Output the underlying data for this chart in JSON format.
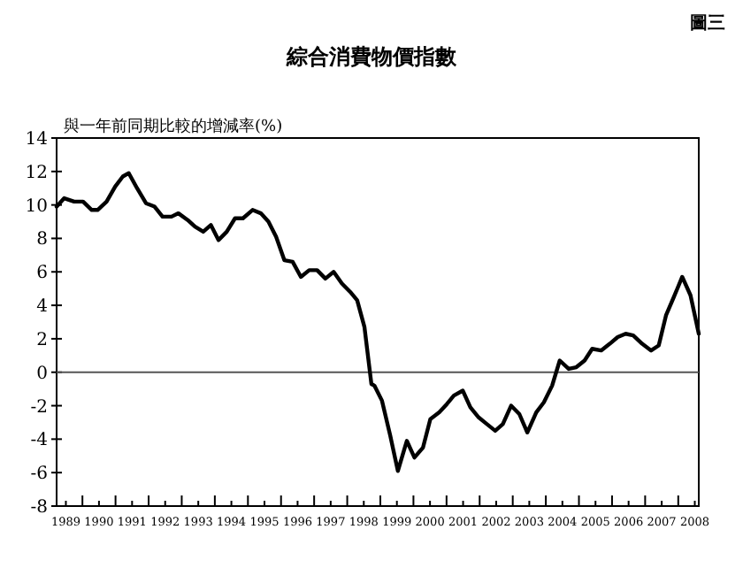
{
  "chart_data": {
    "type": "line",
    "title": "綜合消費物價指數",
    "ylabel": "與一年前同期比較的增減率(%)",
    "annotations": [
      "圖三"
    ],
    "x": [
      1989.22,
      1989.45,
      1989.75,
      1990.02,
      1990.28,
      1990.46,
      1990.73,
      1990.99,
      1991.22,
      1991.4,
      1991.65,
      1991.92,
      1992.18,
      1992.42,
      1992.69,
      1992.9,
      1993.18,
      1993.4,
      1993.65,
      1993.88,
      1994.11,
      1994.36,
      1994.61,
      1994.85,
      1995.14,
      1995.39,
      1995.62,
      1995.85,
      1996.1,
      1996.35,
      1996.6,
      1996.85,
      1997.09,
      1997.34,
      1997.59,
      1997.84,
      1998.09,
      1998.3,
      1998.52,
      1998.73,
      1998.82,
      1999.05,
      1999.3,
      1999.53,
      1999.8,
      2000.03,
      2000.29,
      2000.51,
      2000.78,
      2001.01,
      2001.22,
      2001.49,
      2001.72,
      2001.97,
      2002.22,
      2002.47,
      2002.7,
      2002.95,
      2003.2,
      2003.44,
      2003.71,
      2003.94,
      2004.19,
      2004.42,
      2004.69,
      2004.92,
      2005.17,
      2005.4,
      2005.67,
      2005.93,
      2006.17,
      2006.41,
      2006.64,
      2006.91,
      2007.18,
      2007.41,
      2007.63,
      2007.89,
      2008.12,
      2008.37,
      2008.62
    ],
    "series": [
      {
        "color": "#000000",
        "values": [
          9.9,
          10.4,
          10.2,
          10.2,
          9.7,
          9.7,
          10.2,
          11.1,
          11.7,
          11.9,
          11.0,
          10.1,
          9.9,
          9.3,
          9.3,
          9.5,
          9.1,
          8.7,
          8.4,
          8.8,
          7.9,
          8.4,
          9.2,
          9.2,
          9.7,
          9.5,
          9.0,
          8.1,
          6.7,
          6.6,
          5.7,
          6.1,
          6.1,
          5.6,
          6.0,
          5.3,
          4.8,
          4.3,
          2.7,
          -0.7,
          -0.8,
          -1.7,
          -3.8,
          -5.9,
          -4.1,
          -5.1,
          -4.5,
          -2.8,
          -2.4,
          -1.9,
          -1.4,
          -1.1,
          -2.1,
          -2.7,
          -3.1,
          -3.5,
          -3.1,
          -2.0,
          -2.5,
          -3.6,
          -2.4,
          -1.8,
          -0.8,
          0.7,
          0.2,
          0.3,
          0.7,
          1.4,
          1.3,
          1.7,
          2.1,
          2.3,
          2.2,
          1.7,
          1.3,
          1.6,
          3.4,
          4.6,
          5.7,
          4.6,
          2.3
        ]
      }
    ],
    "xlim": [
      1989.22,
      2008.62
    ],
    "xticks": [
      {
        "value": 1989.5,
        "label": "1989"
      },
      {
        "value": 1990,
        "label": null
      },
      {
        "value": 1990.5,
        "label": "1990"
      },
      {
        "value": 1991,
        "label": null
      },
      {
        "value": 1991.5,
        "label": "1991"
      },
      {
        "value": 1992,
        "label": null
      },
      {
        "value": 1992.5,
        "label": "1992"
      },
      {
        "value": 1993,
        "label": null
      },
      {
        "value": 1993.5,
        "label": "1993"
      },
      {
        "value": 1994,
        "label": null
      },
      {
        "value": 1994.5,
        "label": "1994"
      },
      {
        "value": 1995,
        "label": null
      },
      {
        "value": 1995.5,
        "label": "1995"
      },
      {
        "value": 1996,
        "label": null
      },
      {
        "value": 1996.5,
        "label": "1996"
      },
      {
        "value": 1997,
        "label": null
      },
      {
        "value": 1997.5,
        "label": "1997"
      },
      {
        "value": 1998,
        "label": null
      },
      {
        "value": 1998.5,
        "label": "1998"
      },
      {
        "value": 1999,
        "label": null
      },
      {
        "value": 1999.5,
        "label": "1999"
      },
      {
        "value": 2000,
        "label": null
      },
      {
        "value": 2000.5,
        "label": "2000"
      },
      {
        "value": 2001,
        "label": null
      },
      {
        "value": 2001.5,
        "label": "2001"
      },
      {
        "value": 2002,
        "label": null
      },
      {
        "value": 2002.5,
        "label": "2002"
      },
      {
        "value": 2003,
        "label": null
      },
      {
        "value": 2003.5,
        "label": "2003"
      },
      {
        "value": 2004,
        "label": null
      },
      {
        "value": 2004.5,
        "label": "2004"
      },
      {
        "value": 2005,
        "label": null
      },
      {
        "value": 2005.5,
        "label": "2005"
      },
      {
        "value": 2006,
        "label": null
      },
      {
        "value": 2006.5,
        "label": "2006"
      },
      {
        "value": 2007,
        "label": null
      },
      {
        "value": 2007.5,
        "label": "2007"
      },
      {
        "value": 2008,
        "label": null
      },
      {
        "value": 2008.5,
        "label": "2008"
      }
    ],
    "ylim": [
      -8,
      14
    ],
    "yticks": [
      -8,
      -6,
      -4,
      -2,
      0,
      2,
      4,
      6,
      8,
      10,
      12,
      14
    ],
    "ref_lines": [
      {
        "axis": "y",
        "value": 0,
        "color": "#555555"
      }
    ],
    "grid": false,
    "marker": "none",
    "line_style": "solid"
  }
}
